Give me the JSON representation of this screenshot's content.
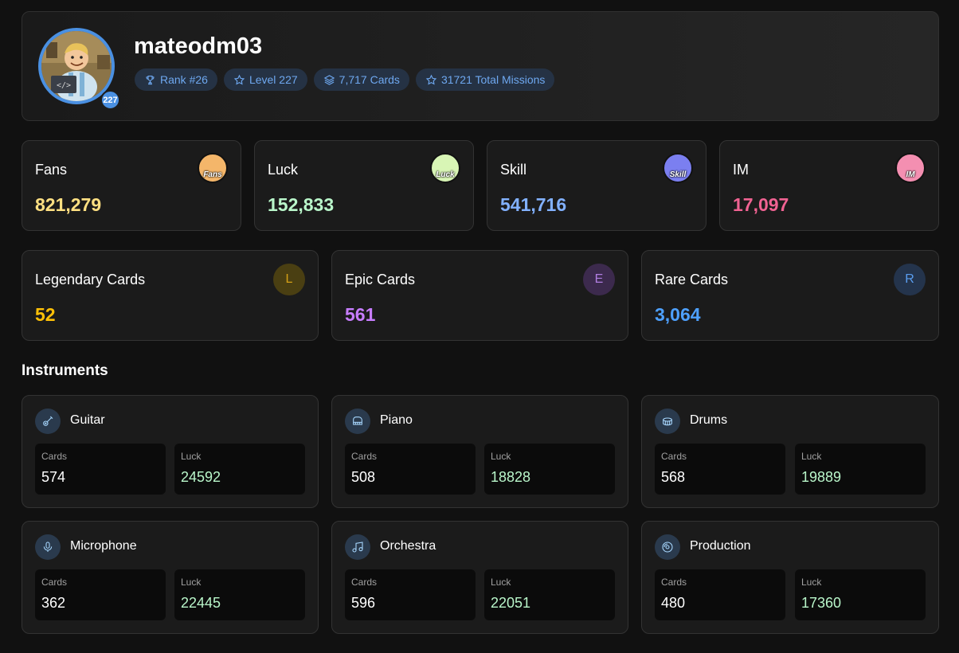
{
  "profile": {
    "username": "mateodm03",
    "level_badge": "227",
    "pills": {
      "rank": "Rank #26",
      "level": "Level 227",
      "cards": "7,717 Cards",
      "missions": "31721 Total Missions"
    }
  },
  "stats": [
    {
      "label": "Fans",
      "value": "821,279",
      "color": "#ffe082",
      "icon_text": "Fans",
      "icon_bg": "#f4b66a",
      "icon": "fans-icon"
    },
    {
      "label": "Luck",
      "value": "152,833",
      "color": "#b9f6ca",
      "icon_text": "Luck",
      "icon_bg": "#d8f5b5",
      "icon": "clover-icon"
    },
    {
      "label": "Skill",
      "value": "541,716",
      "color": "#82b1ff",
      "icon_text": "Skill",
      "icon_bg": "#7b7ff0",
      "icon": "skill-icon"
    },
    {
      "label": "IM",
      "value": "17,097",
      "color": "#f06292",
      "icon_text": "IM",
      "icon_bg": "#f48fb1",
      "icon": "money-icon"
    }
  ],
  "rarities": [
    {
      "label": "Legendary Cards",
      "value": "52",
      "letter": "L",
      "color": "#ffc107",
      "icon_bg": "#4a3f12",
      "icon_color": "#d4a017"
    },
    {
      "label": "Epic Cards",
      "value": "561",
      "letter": "E",
      "color": "#c77dff",
      "icon_bg": "#3c2a4d",
      "icon_color": "#b07de0"
    },
    {
      "label": "Rare Cards",
      "value": "3,064",
      "letter": "R",
      "color": "#4ea1ff",
      "icon_bg": "#24344c",
      "icon_color": "#5a9ef0"
    }
  ],
  "instruments_title": "Instruments",
  "instruments": [
    {
      "name": "Guitar",
      "cards_label": "Cards",
      "cards": "574",
      "luck_label": "Luck",
      "luck": "24592",
      "icon": "guitar-icon"
    },
    {
      "name": "Piano",
      "cards_label": "Cards",
      "cards": "508",
      "luck_label": "Luck",
      "luck": "18828",
      "icon": "piano-icon"
    },
    {
      "name": "Drums",
      "cards_label": "Cards",
      "cards": "568",
      "luck_label": "Luck",
      "luck": "19889",
      "icon": "drum-icon"
    },
    {
      "name": "Microphone",
      "cards_label": "Cards",
      "cards": "362",
      "luck_label": "Luck",
      "luck": "22445",
      "icon": "microphone-icon"
    },
    {
      "name": "Orchestra",
      "cards_label": "Cards",
      "cards": "596",
      "luck_label": "Luck",
      "luck": "22051",
      "icon": "music-note-icon"
    },
    {
      "name": "Production",
      "cards_label": "Cards",
      "cards": "480",
      "luck_label": "Luck",
      "luck": "17360",
      "icon": "disc-icon"
    }
  ],
  "colors": {
    "accent": "#4a90e2",
    "luck_value": "#b9f6ca",
    "pill_text": "#6ea8f0"
  }
}
